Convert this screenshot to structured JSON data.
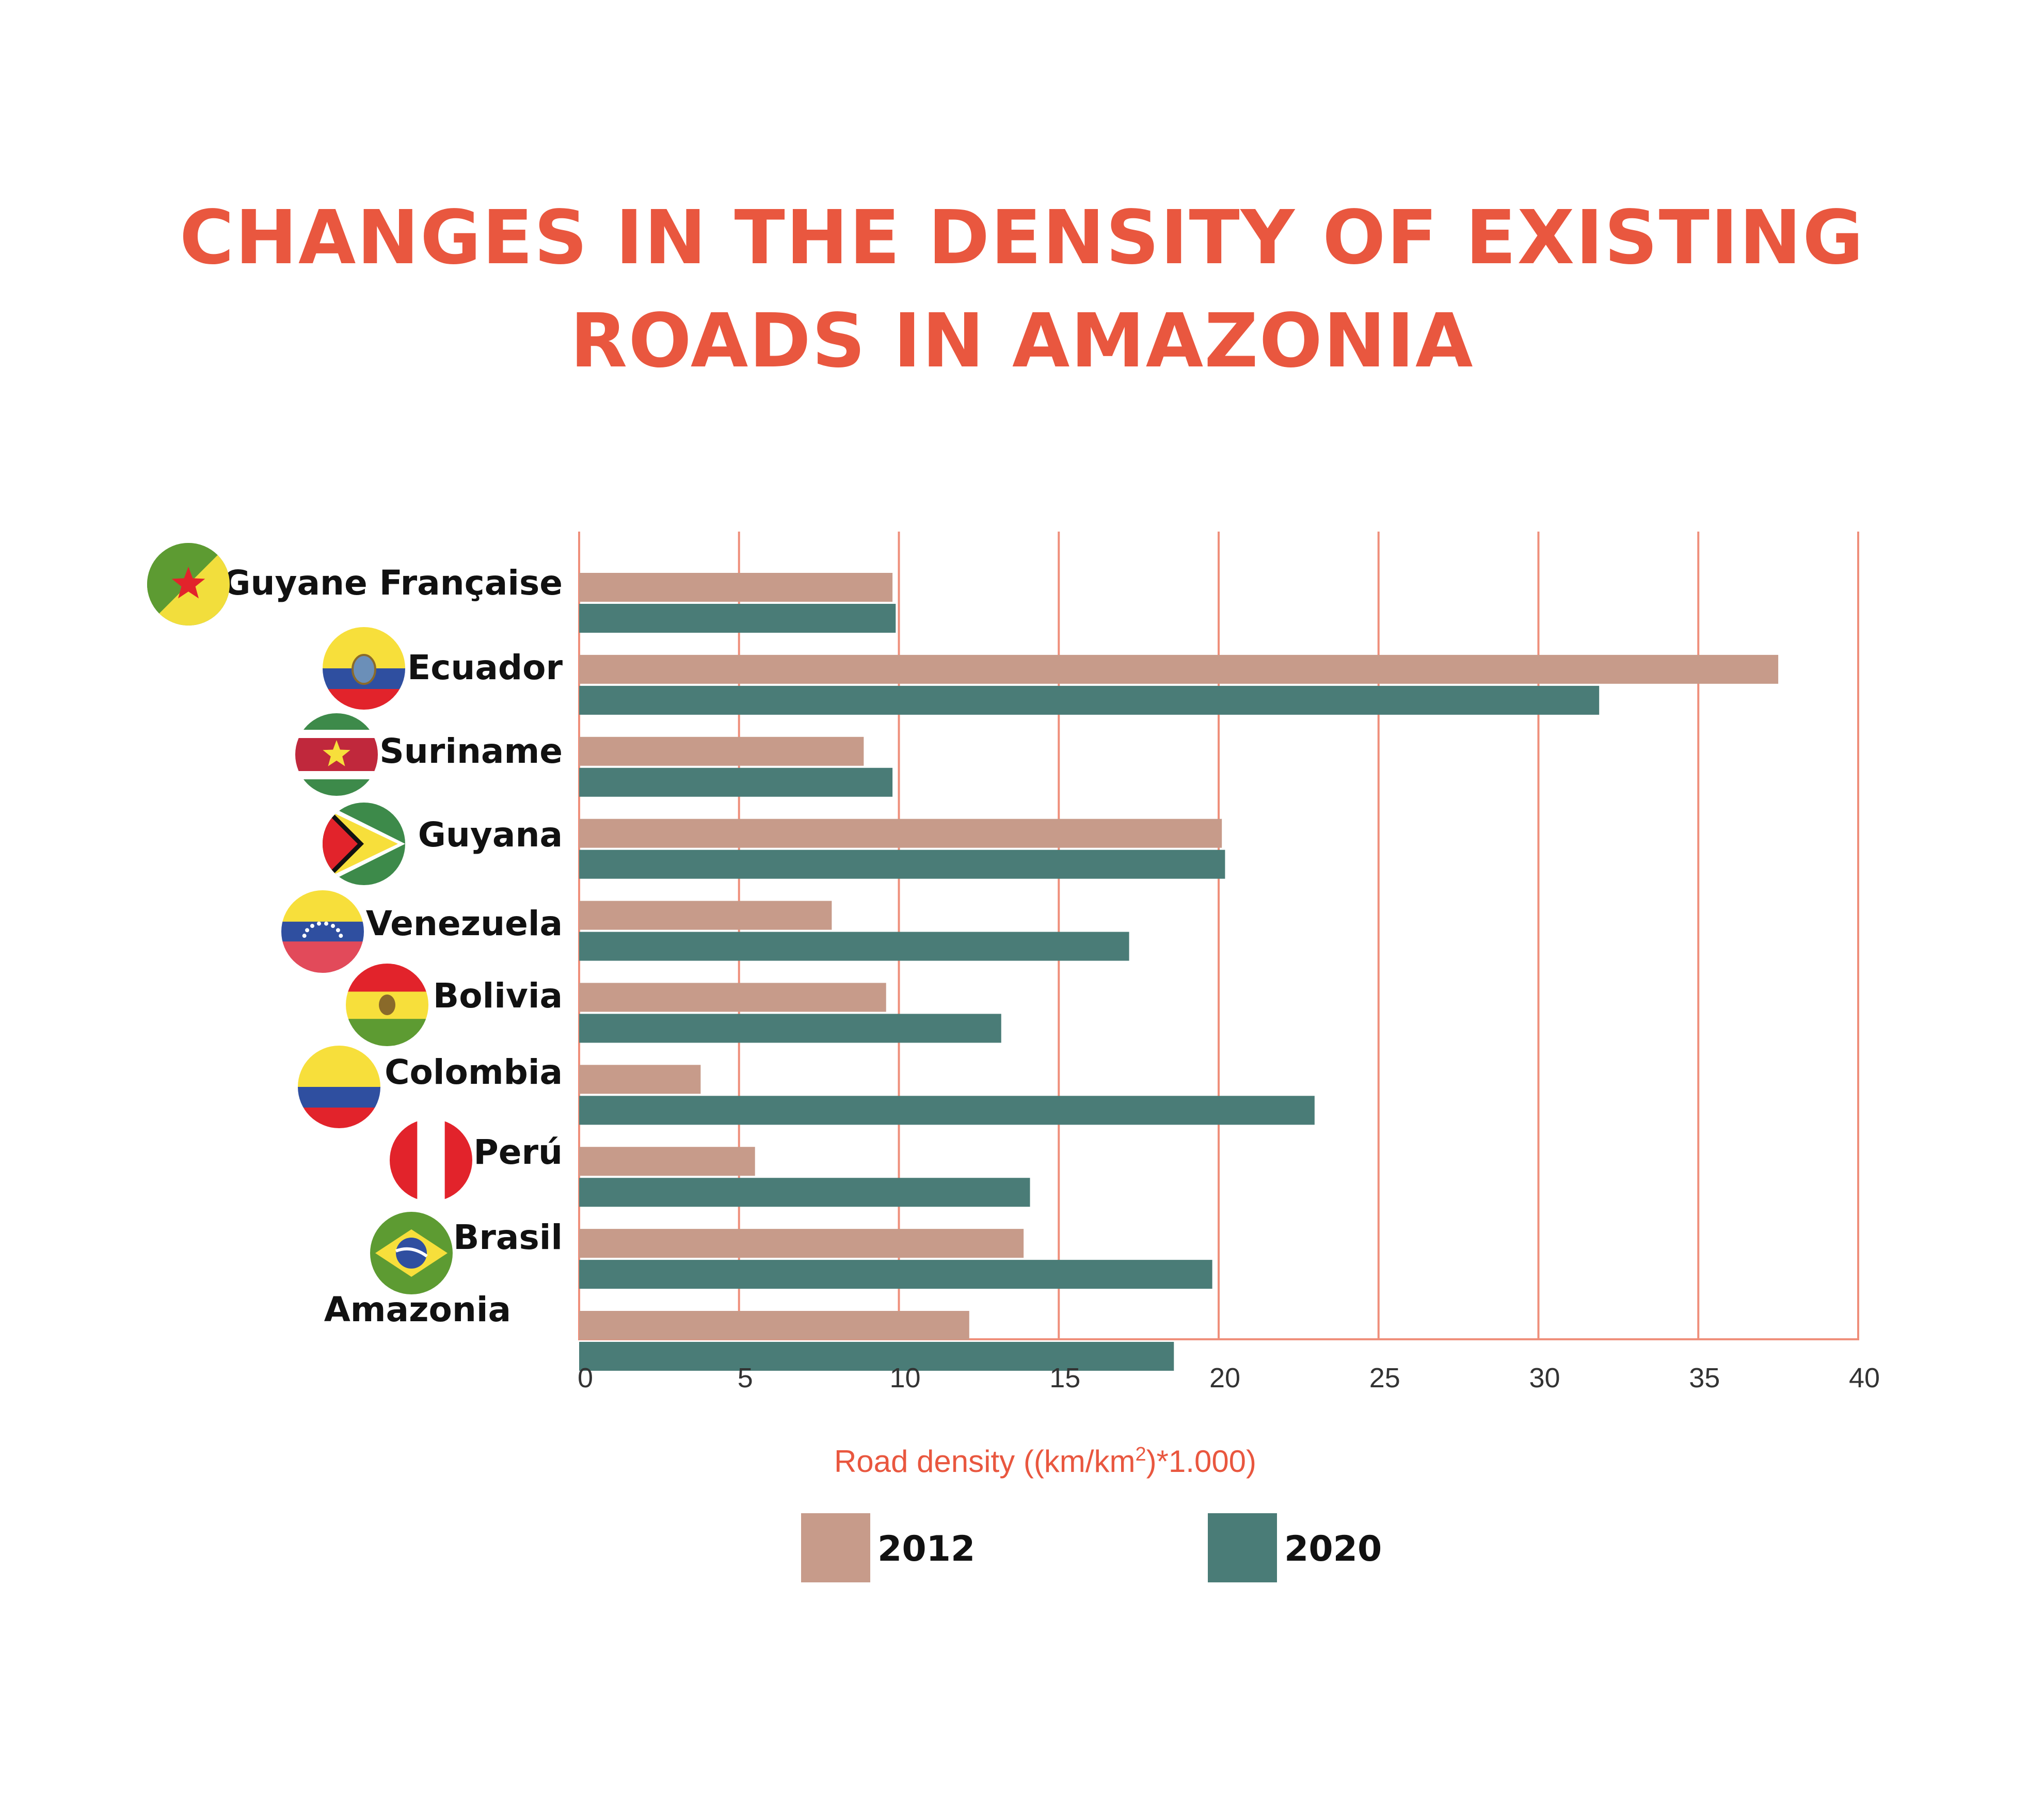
{
  "chart_data": {
    "type": "bar",
    "orientation": "horizontal",
    "title": "CHANGES IN THE DENSITY OF EXISTING ROADS IN AMAZONIA",
    "title_lines": [
      "CHANGES IN THE DENSITY OF EXISTING",
      "ROADS IN AMAZONIA"
    ],
    "categories": [
      "Guyane Française",
      "Ecuador",
      "Suriname",
      "Guyana",
      "Venezuela",
      "Bolivia",
      "Colombia",
      "Perú",
      "Brasil",
      "Amazonia"
    ],
    "flags": [
      "french-guiana-flag-icon",
      "ecuador-flag-icon",
      "suriname-flag-icon",
      "guyana-flag-icon",
      "venezuela-flag-icon",
      "bolivia-flag-icon",
      "colombia-flag-icon",
      "peru-flag-icon",
      "brazil-flag-icon",
      ""
    ],
    "series": [
      {
        "name": "2012",
        "color": "#c79b8a",
        "values": [
          9.8,
          37.5,
          8.9,
          20.1,
          7.9,
          9.6,
          3.8,
          5.5,
          13.9,
          12.2
        ]
      },
      {
        "name": "2020",
        "color": "#4a7c77",
        "values": [
          9.9,
          31.9,
          9.8,
          20.2,
          17.2,
          13.2,
          23.0,
          14.1,
          19.8,
          18.6
        ]
      }
    ],
    "xaxis": {
      "label_prefix": "Road density ((km/km",
      "label_superscript": "2",
      "label_suffix": ")*1.000)",
      "ticks": [
        0,
        5,
        10,
        15,
        20,
        25,
        30,
        35,
        40
      ],
      "xlim": [
        0,
        40
      ]
    },
    "grid": true,
    "gridline_color": "#ef8f7b",
    "legend_position": "bottom",
    "title_color": "#e9573f",
    "axis_title_color": "#e9573f"
  }
}
